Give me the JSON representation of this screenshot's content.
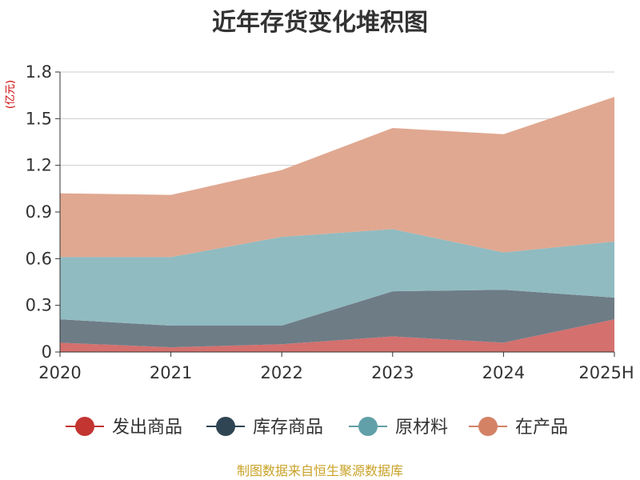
{
  "chart_data": {
    "type": "area",
    "stacked": true,
    "title": "近年存货变化堆积图",
    "ylabel": "(亿元)",
    "categories": [
      "2020",
      "2021",
      "2022",
      "2023",
      "2024",
      "2025H"
    ],
    "ylim": [
      0,
      1.8
    ],
    "yticks": [
      {
        "value": 0,
        "label": "0"
      },
      {
        "value": 0.3,
        "label": "0.3"
      },
      {
        "value": 0.6,
        "label": "0.6"
      },
      {
        "value": 0.9,
        "label": "0.9"
      },
      {
        "value": 1.2,
        "label": "1.2"
      },
      {
        "value": 1.5,
        "label": "1.5"
      },
      {
        "value": 1.8,
        "label": "1.8"
      }
    ],
    "grid": true,
    "legend_position": "bottom",
    "series": [
      {
        "name": "发出商品",
        "color": "#c23531",
        "fill": "#d4706e",
        "values": [
          0.06,
          0.03,
          0.05,
          0.1,
          0.06,
          0.21
        ]
      },
      {
        "name": "库存商品",
        "color": "#2f4554",
        "fill": "#6e7c86",
        "values": [
          0.15,
          0.14,
          0.12,
          0.29,
          0.34,
          0.14
        ]
      },
      {
        "name": "原材料",
        "color": "#61a0a8",
        "fill": "#90bbc1",
        "values": [
          0.4,
          0.44,
          0.57,
          0.4,
          0.24,
          0.36
        ]
      },
      {
        "name": "在产品",
        "color": "#d48265",
        "fill": "#e0a891",
        "values": [
          0.41,
          0.4,
          0.43,
          0.65,
          0.76,
          0.93
        ]
      }
    ]
  },
  "footer": {
    "source": "制图数据来自恒生聚源数据库"
  }
}
